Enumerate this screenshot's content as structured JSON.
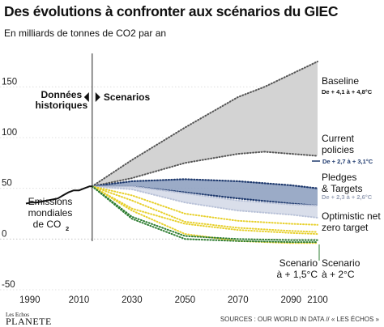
{
  "header": {
    "title": "Des évolutions à confronter aux scénarios du GIEC",
    "subtitle": "En milliards de tonnes de CO2 par an"
  },
  "footer": {
    "logo_top": "Les Echos",
    "logo_bottom": "PLANETE",
    "sources": "SOURCES : OUR WORLD IN DATA // « LES ÉCHOS »"
  },
  "colors": {
    "baseline_fill": "#d3d3d3",
    "current_fill": "#8a9cbd",
    "current_line": "#1f3a6e",
    "pledges_fill": "#d2d8e6",
    "pledges_line": "#b9c2d8",
    "optimistic": "#e7d02c",
    "green": "#2e7d32"
  },
  "chart_data": {
    "type": "area",
    "title": "Des évolutions à confronter aux scénarios du GIEC",
    "subtitle": "En milliards de tonnes de CO2 par an",
    "xlim": [
      1990,
      2100
    ],
    "ylim": [
      -50,
      175
    ],
    "x_ticks": [
      "1990",
      "2010",
      "2030",
      "2050",
      "2070",
      "2090",
      "2100"
    ],
    "x_tick_values": [
      1990,
      2010,
      2030,
      2050,
      2070,
      2090,
      2100
    ],
    "y_ticks": [
      "150",
      "100",
      "50",
      "0",
      "-50"
    ],
    "y_tick_values": [
      150,
      100,
      50,
      0,
      -50
    ],
    "divider_year": 2015,
    "divider_labels": {
      "historic": [
        "Données",
        "historiques"
      ],
      "scenarios": "Scenarios"
    },
    "historical": {
      "name": "Emissions mondiales de CO2",
      "label_lines": [
        "Emissions",
        "mondiales",
        "de CO"
      ],
      "label_sub": "2",
      "x": [
        1990,
        1992,
        1994,
        1996,
        1998,
        2000,
        2002,
        2004,
        2006,
        2008,
        2010,
        2012,
        2014,
        2015
      ],
      "y": [
        35,
        36,
        36,
        37,
        38,
        39,
        40,
        43,
        46,
        48,
        48,
        50,
        52,
        52
      ]
    },
    "bands": [
      {
        "name": "Baseline",
        "label_lines": [
          "Baseline"
        ],
        "range": "De + 4,1 à + 4,8°C",
        "type": "fill",
        "x": [
          2015,
          2030,
          2050,
          2070,
          2080,
          2100
        ],
        "upper": [
          52,
          78,
          110,
          140,
          150,
          175
        ],
        "lower": [
          52,
          60,
          75,
          84,
          86,
          82
        ]
      },
      {
        "name": "Current policies",
        "label_lines": [
          "Current",
          "policies"
        ],
        "range": "De + 2,7 à + 3,1°C",
        "type": "fill",
        "x": [
          2015,
          2030,
          2050,
          2070,
          2090,
          2100
        ],
        "upper": [
          52,
          57,
          59,
          57,
          53,
          50
        ],
        "lower": [
          52,
          52,
          46,
          40,
          35,
          33
        ]
      },
      {
        "name": "Pledges & Targets",
        "label_lines": [
          "Pledges",
          "& Targets"
        ],
        "range": "De + 2,3 à + 2,6°C",
        "type": "fill",
        "x": [
          2015,
          2030,
          2050,
          2070,
          2090,
          2100
        ],
        "upper": [
          52,
          52,
          45,
          38,
          34,
          33
        ],
        "lower": [
          52,
          49,
          36,
          28,
          24,
          21
        ]
      },
      {
        "name": "Optimistic net zero target",
        "label_lines": [
          "Optimistic net",
          "zero target"
        ],
        "type": "dotted",
        "x": [
          2015,
          2030,
          2050,
          2070,
          2090,
          2100
        ],
        "upper": [
          52,
          43,
          25,
          18,
          15,
          14
        ],
        "lower": [
          52,
          38,
          17,
          11,
          8,
          7
        ]
      },
      {
        "name": "Scenario à + 2°C",
        "label_lines": [
          "Scenario",
          "à + 2°C"
        ],
        "type": "dotted",
        "x": [
          2015,
          2030,
          2050,
          2070,
          2090,
          2100
        ],
        "upper": [
          52,
          30,
          15,
          9,
          6,
          5
        ],
        "lower": [
          52,
          28,
          5,
          -2,
          -4,
          -4
        ]
      },
      {
        "name": "Scenario à + 1,5°C",
        "label_lines": [
          "Scenario",
          "à + 1,5°C"
        ],
        "type": "dotted",
        "x": [
          2015,
          2030,
          2050,
          2070,
          2090,
          2100
        ],
        "upper": [
          52,
          22,
          3,
          0,
          -1,
          -1
        ],
        "lower": [
          52,
          20,
          0,
          -2,
          -3,
          -3
        ]
      }
    ]
  }
}
